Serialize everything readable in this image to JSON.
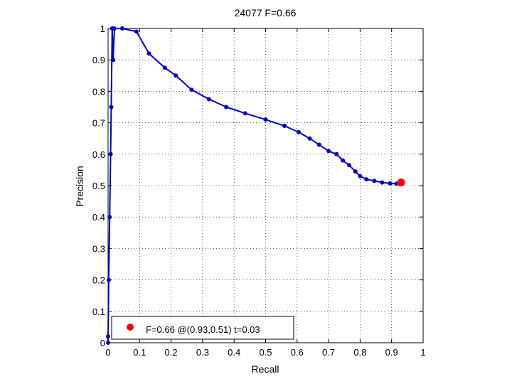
{
  "chart_data": {
    "type": "line",
    "title": "24077 F=0.66",
    "xlabel": "Recall",
    "ylabel": "Precision",
    "xlim": [
      0,
      1
    ],
    "ylim": [
      0,
      1
    ],
    "xticks": [
      "0",
      "0.1",
      "0.2",
      "0.3",
      "0.4",
      "0.5",
      "0.6",
      "0.7",
      "0.8",
      "0.9",
      "1"
    ],
    "yticks": [
      "0",
      "0.1",
      "0.2",
      "0.3",
      "0.4",
      "0.5",
      "0.6",
      "0.7",
      "0.8",
      "0.9",
      "1"
    ],
    "grid": true,
    "grid_style": "dotted",
    "series": [
      {
        "color": "#0000cc",
        "marker": "circle",
        "points": [
          [
            0.0,
            0.0
          ],
          [
            0.0,
            0.02
          ],
          [
            0.002,
            0.2
          ],
          [
            0.005,
            0.4
          ],
          [
            0.008,
            0.6
          ],
          [
            0.01,
            0.75
          ],
          [
            0.013,
            1.0
          ],
          [
            0.016,
            0.9
          ],
          [
            0.02,
            1.0
          ],
          [
            0.045,
            1.0
          ],
          [
            0.09,
            0.99
          ],
          [
            0.13,
            0.92
          ],
          [
            0.18,
            0.875
          ],
          [
            0.215,
            0.85
          ],
          [
            0.265,
            0.805
          ],
          [
            0.32,
            0.775
          ],
          [
            0.375,
            0.75
          ],
          [
            0.435,
            0.73
          ],
          [
            0.5,
            0.71
          ],
          [
            0.56,
            0.69
          ],
          [
            0.605,
            0.67
          ],
          [
            0.64,
            0.65
          ],
          [
            0.67,
            0.63
          ],
          [
            0.7,
            0.61
          ],
          [
            0.725,
            0.6
          ],
          [
            0.745,
            0.58
          ],
          [
            0.765,
            0.565
          ],
          [
            0.785,
            0.545
          ],
          [
            0.8,
            0.53
          ],
          [
            0.82,
            0.52
          ],
          [
            0.845,
            0.515
          ],
          [
            0.87,
            0.51
          ],
          [
            0.895,
            0.507
          ],
          [
            0.915,
            0.506
          ],
          [
            0.93,
            0.505
          ]
        ]
      }
    ],
    "highlight_point": {
      "x": 0.93,
      "y": 0.51,
      "color": "#ff0000"
    },
    "legend": {
      "placement": "bottom-left",
      "entries": [
        {
          "label": "F=0.66 @(0.93,0.51) t=0.03",
          "color": "#ff0000",
          "marker": "circle"
        }
      ]
    }
  }
}
